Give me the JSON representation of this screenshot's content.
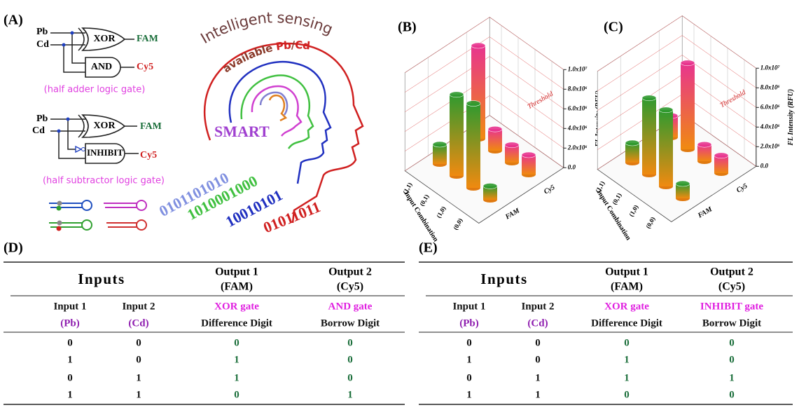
{
  "panel_labels": [
    "(A)",
    "(B)",
    "(C)",
    "(D)",
    "(E)"
  ],
  "logic_gates": [
    {
      "inputs": [
        "Pb",
        "Cd"
      ],
      "gates": [
        "XOR",
        "AND"
      ],
      "outputs": [
        "FAM",
        "Cy5"
      ],
      "caption": "(half adder logic gate)"
    },
    {
      "inputs": [
        "Pb",
        "Cd"
      ],
      "gates": [
        "XOR",
        "INHIBIT"
      ],
      "outputs": [
        "FAM",
        "Cy5"
      ],
      "caption": "(half subtractor logic gate)"
    }
  ],
  "illustration": {
    "title": "Intelligent sensing",
    "subtitle": [
      "available ",
      "Pb",
      "/",
      "Cd"
    ],
    "word": "SMART",
    "binary": [
      "0101101010",
      "1010001000",
      "10010101",
      "01011011"
    ]
  },
  "chart_data": [
    {
      "type": "bar3d",
      "x_label": "Input Combination",
      "y_label": "FL Intensity (RFU)",
      "threshold_label": "Threshold",
      "categories": [
        "(0,0)",
        "(1,0)",
        "(0,1)",
        "(1,1)"
      ],
      "series": [
        {
          "name": "FAM",
          "color": "#2f9a2f",
          "values": [
            1400000,
            8600000,
            8300000,
            2000000
          ]
        },
        {
          "name": "Cy5",
          "color": "#e8348f",
          "values": [
            2000000,
            1800000,
            2200000,
            9500000
          ]
        }
      ],
      "ylim": [
        0,
        10000000
      ],
      "yticks": [
        {
          "value": 0,
          "label": "0.0"
        },
        {
          "value": 2000000,
          "label": "2.0x10⁶"
        },
        {
          "value": 4000000,
          "label": "4.0x10⁶"
        },
        {
          "value": 6000000,
          "label": "6.0x10⁶"
        },
        {
          "value": 8000000,
          "label": "8.0x10⁶"
        },
        {
          "value": 10000000,
          "label": "1.0x10⁷"
        }
      ]
    },
    {
      "type": "bar3d",
      "x_label": "Input Combination",
      "y_label": "FL Intensity (RFU)",
      "threshold_label": "Threshold",
      "categories": [
        "(0,0)",
        "(1,0)",
        "(0,1)",
        "(1,1)"
      ],
      "series": [
        {
          "name": "FAM",
          "color": "#2f9a2f",
          "values": [
            1500000,
            7800000,
            7800000,
            2000000
          ]
        },
        {
          "name": "Cy5",
          "color": "#e8348f",
          "values": [
            1800000,
            1700000,
            8800000,
            2200000
          ]
        }
      ],
      "ylim": [
        0,
        10000000
      ],
      "yticks": [
        {
          "value": 0,
          "label": "0.0"
        },
        {
          "value": 2000000,
          "label": "2.0x10⁶"
        },
        {
          "value": 4000000,
          "label": "4.0x10⁶"
        },
        {
          "value": 6000000,
          "label": "6.0x10⁶"
        },
        {
          "value": 8000000,
          "label": "8.0x10⁶"
        },
        {
          "value": 10000000,
          "label": "1.0x10⁷"
        }
      ]
    }
  ],
  "tables": [
    {
      "header": {
        "inputs": "Inputs",
        "output1": [
          "Output 1",
          "(FAM)"
        ],
        "output2": [
          "Output 2",
          "(Cy5)"
        ]
      },
      "subheader": [
        [
          "Input 1",
          "(Pb)"
        ],
        [
          "Input 2",
          "(Cd)"
        ],
        [
          "XOR gate",
          "Difference Digit"
        ],
        [
          "AND gate",
          "Borrow Digit"
        ]
      ],
      "rows": [
        [
          0,
          0,
          0,
          0
        ],
        [
          1,
          0,
          1,
          0
        ],
        [
          0,
          1,
          1,
          0
        ],
        [
          1,
          1,
          0,
          1
        ]
      ]
    },
    {
      "header": {
        "inputs": "Inputs",
        "output1": [
          "Output 1",
          "(FAM)"
        ],
        "output2": [
          "Output 2",
          "(Cy5)"
        ]
      },
      "subheader": [
        [
          "Input 1",
          "(Pb)"
        ],
        [
          "Input 2",
          "(Cd)"
        ],
        [
          "XOR gate",
          "Difference Digit"
        ],
        [
          "INHIBIT gate",
          "Borrow Digit"
        ]
      ],
      "rows": [
        [
          0,
          0,
          0,
          0
        ],
        [
          1,
          0,
          1,
          0
        ],
        [
          0,
          1,
          1,
          1
        ],
        [
          1,
          1,
          0,
          0
        ]
      ]
    }
  ]
}
